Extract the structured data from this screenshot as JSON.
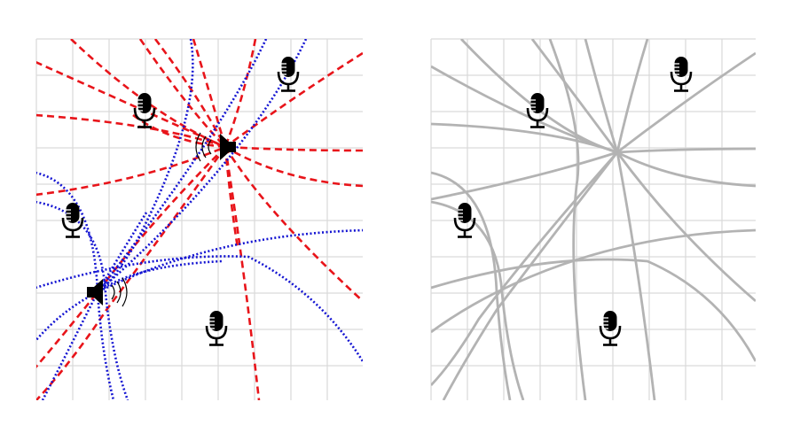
{
  "colors": {
    "grid": "#d9d9d9",
    "background": "#ffffff",
    "speaker_rays": "#e8141a",
    "speaker2_rays": "#1414d2",
    "gray_rays": "#b3b3b3",
    "icons": "#000000"
  },
  "icons": {
    "microphone": "microphone-icon",
    "speaker": "speaker-icon"
  },
  "panels": [
    {
      "name": "left-panel",
      "microphones": 4,
      "speakers": 2,
      "ray_styles": [
        "red-dashed",
        "blue-dotted"
      ]
    },
    {
      "name": "right-panel",
      "microphones": 4,
      "speakers": 0,
      "ray_styles": [
        "gray-solid"
      ]
    }
  ]
}
